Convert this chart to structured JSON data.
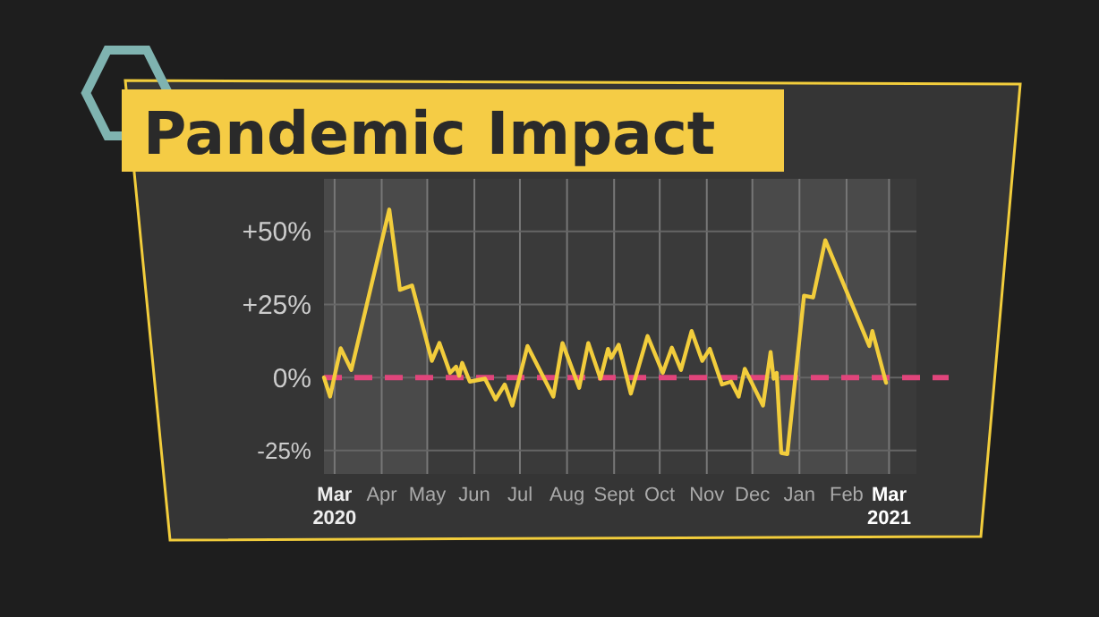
{
  "chart_data": {
    "type": "line",
    "title": "Pandemic Impact",
    "x": [
      "2020-02-23",
      "2020-02-27",
      "2020-03-05",
      "2020-03-12",
      "2020-04-06",
      "2020-04-13",
      "2020-04-21",
      "2020-05-04",
      "2020-05-09",
      "2020-05-16",
      "2020-05-20",
      "2020-05-22",
      "2020-05-24",
      "2020-05-29",
      "2020-06-08",
      "2020-06-15",
      "2020-06-21",
      "2020-06-26",
      "2020-07-06",
      "2020-07-23",
      "2020-07-29",
      "2020-08-09",
      "2020-08-15",
      "2020-08-23",
      "2020-08-28",
      "2020-08-30",
      "2020-09-04",
      "2020-09-12",
      "2020-09-23",
      "2020-10-03",
      "2020-10-09",
      "2020-10-15",
      "2020-10-22",
      "2020-10-29",
      "2020-11-03",
      "2020-11-11",
      "2020-11-17",
      "2020-11-22",
      "2020-11-26",
      "2020-12-08",
      "2020-12-13",
      "2020-12-15",
      "2020-12-17",
      "2020-12-20",
      "2020-12-24",
      "2021-01-04",
      "2021-01-10",
      "2021-01-18",
      "2021-02-16",
      "2021-02-18",
      "2021-02-27"
    ],
    "series": [
      {
        "color": "#f2cd3c",
        "values": [
          0,
          -6.5,
          10,
          2.6,
          57.5,
          30,
          31.5,
          5.7,
          11.8,
          1.6,
          3.7,
          0.6,
          5,
          -1.4,
          -0.4,
          -7.5,
          -2.4,
          -9.6,
          10.8,
          -6.5,
          11.8,
          -3.5,
          11.8,
          -0.4,
          9.8,
          6.7,
          11.2,
          -5.5,
          14.2,
          1.6,
          10.2,
          2.6,
          15.9,
          5.7,
          9.8,
          -2.4,
          -1.4,
          -6.5,
          3,
          -9.6,
          8.7,
          -0.4,
          1.6,
          -25.8,
          -26.2,
          28,
          27.4,
          47,
          10.8,
          15.9,
          -1.8
        ]
      }
    ],
    "xlim": [
      "2020-02-23",
      "2021-03-19"
    ],
    "xticks": [
      {
        "value": "2020-03",
        "label": "Mar 2020"
      },
      {
        "value": "2020-04",
        "label": "Apr"
      },
      {
        "value": "2020-05",
        "label": "May"
      },
      {
        "value": "2020-06",
        "label": "Jun"
      },
      {
        "value": "2020-07",
        "label": "Jul"
      },
      {
        "value": "2020-08",
        "label": "Aug"
      },
      {
        "value": "2020-09",
        "label": "Sept"
      },
      {
        "value": "2020-10",
        "label": "Oct"
      },
      {
        "value": "2020-11",
        "label": "Nov"
      },
      {
        "value": "2020-12",
        "label": "Dec"
      },
      {
        "value": "2021-01",
        "label": "Jan"
      },
      {
        "value": "2021-02",
        "label": "Feb"
      },
      {
        "value": "2021-03",
        "label": "Mar 2021"
      }
    ],
    "ylim": [
      -33,
      68
    ],
    "yticks": [
      {
        "value": -25,
        "label": "-25%"
      },
      {
        "value": 0,
        "label": "0%"
      },
      {
        "value": 25,
        "label": "+25%"
      },
      {
        "value": 50,
        "label": "+50%"
      }
    ],
    "grid": true,
    "ref_lines": [
      {
        "axis": "y",
        "value": 0,
        "color": "#e0457b",
        "line_style": "dashed"
      }
    ],
    "bands": [
      {
        "axis": "x",
        "from": "2020-02-23",
        "to": "2020-05-01",
        "color": "#4a4a4a"
      },
      {
        "axis": "x",
        "from": "2020-12-01",
        "to": "2021-03-01",
        "color": "#4a4a4a"
      }
    ]
  }
}
